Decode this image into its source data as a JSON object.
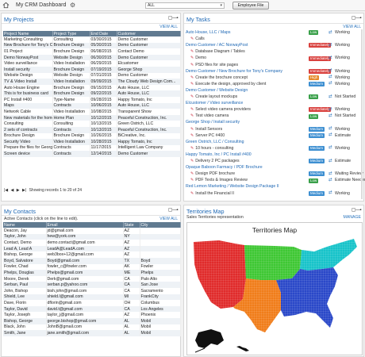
{
  "topbar": {
    "title": "My CRM Dashboard",
    "filter_value": "ALL",
    "employee_button": "Employee File"
  },
  "projects": {
    "title": "My Projects",
    "view_all": "VIEW ALL",
    "columns": [
      "Project Name",
      "Project Type",
      "End Date",
      "Customer"
    ],
    "rows": [
      [
        "Marketing Consulting",
        "Consulting",
        "03/30/2015",
        "Demo Customer"
      ],
      [
        "New Brochure for Tony's Co...",
        "Brochure Design",
        "05/30/2015",
        "Demo Customer"
      ],
      [
        "01 Project",
        "Brochure Design",
        "06/08/2015",
        "Contact Demo"
      ],
      [
        "Demo NorwayPost",
        "Website Design",
        "06/30/2015",
        "Demo Customer"
      ],
      [
        "Video surveillance",
        "Video Installation",
        "06/29/2015",
        "Elcustomer"
      ],
      [
        "Install security",
        "Brochure Design",
        "07/19/2015",
        "George Shop"
      ],
      [
        "Website Design",
        "Website Design",
        "07/31/2015",
        "Demo Customer"
      ],
      [
        "TV & Video Install",
        "Video Installation",
        "09/09/2015",
        "The Cloudy Web Design Com..."
      ],
      [
        "Auto House Engine",
        "Brochure Design",
        "09/15/2015",
        "Auto House, LLC"
      ],
      [
        "This is for business card",
        "Brochure Design",
        "09/22/2015",
        "Auto House, LLC"
      ],
      [
        "PC Install #400",
        "Type-Name",
        "09/28/2015",
        "Happy Tomato, Inc"
      ],
      [
        "Maps",
        "Contracts",
        "10/06/2015",
        "Auto House, LLC"
      ],
      [
        "Network Cable",
        "Video Installation",
        "10/08/2015",
        "Transparent Show"
      ],
      [
        "New materials for the home",
        "Home Plan",
        "10/12/2015",
        "Peaceful Construction, Inc."
      ],
      [
        "Consulting",
        "Consulting",
        "10/13/2015",
        "Green Ostrich, LLC"
      ],
      [
        "2 sets of contracts",
        "Contracts",
        "10/13/2015",
        "Peaceful Construction, Inc."
      ],
      [
        "Brochure Design",
        "Brochure Design",
        "10/26/2015",
        "BiCreative, Inc."
      ],
      [
        "Security Video",
        "Video Installation",
        "10/28/2015",
        "Happy Tomato, Inc"
      ],
      [
        "Prepare the files for George",
        "Contracts",
        "11/17/2015",
        "Intelligent Law Company"
      ],
      [
        "Screen device",
        "Contracts",
        "12/14/2015",
        "Demo Customer"
      ]
    ],
    "pager_text": "Showing records 1 to 20 of 24"
  },
  "tasks": {
    "title": "My Tasks",
    "view_all": "VIEW ALL",
    "rows": [
      {
        "kind": "proj",
        "text": "Auto House, LLC / Maps",
        "badge": "Low",
        "badge_color": "#3aa04a",
        "status": "Working"
      },
      {
        "kind": "item",
        "text": "Calls"
      },
      {
        "kind": "proj",
        "text": "Demo Customer / AC NorwayPost",
        "badge": "Immediately",
        "badge_color": "#d9413e",
        "status": "Working"
      },
      {
        "kind": "item",
        "text": "Database Diagram / Tables"
      },
      {
        "kind": "item",
        "text": "Demo",
        "badge": "Immediately",
        "badge_color": "#d9413e",
        "status": "Working"
      },
      {
        "kind": "item",
        "text": "PSD files for site pages"
      },
      {
        "kind": "proj",
        "text": "Demo Customer / New Brochure for Tony's Company",
        "badge": "Immediately",
        "badge_color": "#d9413e",
        "status": "Working"
      },
      {
        "kind": "item",
        "text": "Create the brochure concept",
        "badge": "High",
        "badge_color": "#e58a2b",
        "status": "Working"
      },
      {
        "kind": "item",
        "text": "Execute the design, approved by client",
        "badge": "Medium",
        "badge_color": "#3d8fd1",
        "status": "Working"
      },
      {
        "kind": "proj",
        "text": "Demo Customer / Website Design"
      },
      {
        "kind": "item",
        "text": "Create layout mockups",
        "badge": "Low",
        "badge_color": "#3aa04a",
        "status": "Not Started"
      },
      {
        "kind": "proj",
        "text": "Elcustomer / Video surveillance"
      },
      {
        "kind": "item",
        "text": "Select video camera providers",
        "badge": "Immediately",
        "badge_color": "#d9413e",
        "status": "Working"
      },
      {
        "kind": "item",
        "text": "Test video camera",
        "badge": "Low",
        "badge_color": "#3aa04a",
        "status": "Not Started"
      },
      {
        "kind": "proj",
        "text": "George Shop / Install security"
      },
      {
        "kind": "item",
        "text": "Install Sensors",
        "badge": "Medium",
        "badge_color": "#3d8fd1",
        "status": "Working"
      },
      {
        "kind": "item",
        "text": "Server PC #400",
        "badge": "Medium",
        "badge_color": "#3d8fd1",
        "status": "Estimate"
      },
      {
        "kind": "proj",
        "text": "Green Ostrich, LLC / Consulting"
      },
      {
        "kind": "item",
        "text": "10 hours - consulting",
        "badge": "Medium",
        "badge_color": "#3d8fd1",
        "status": "Working"
      },
      {
        "kind": "proj",
        "text": "Happy Tomato, Inc / PC Install #400"
      },
      {
        "kind": "item",
        "text": "Delivery 2 PC packages",
        "badge": "Medium",
        "badge_color": "#3d8fd1",
        "status": "Estimate"
      },
      {
        "kind": "proj",
        "text": "Opaque Baboon Farmacy / PDF Brochure"
      },
      {
        "kind": "item",
        "text": "Design PDF brochure",
        "badge": "Medium",
        "badge_color": "#3d8fd1",
        "status": "Waiting Review"
      },
      {
        "kind": "item",
        "text": "PDF Texts & Images Review",
        "badge": "Low",
        "badge_color": "#3aa04a",
        "status": "Estimate Needed"
      },
      {
        "kind": "proj",
        "text": "Red Lemon Marketing / Website Design Package II"
      },
      {
        "kind": "item",
        "text": "Install the Financial II",
        "badge": "Medium",
        "badge_color": "#3d8fd1",
        "status": "Working"
      }
    ]
  },
  "contacts": {
    "title": "My Contacts",
    "view_all": "VIEW ALL",
    "subtitle": "Active Contacts (click on the line to edit).",
    "columns": [
      "Name",
      "Email",
      "State",
      "City"
    ],
    "rows": [
      [
        "Deacon, Jay",
        "jd@gmail.com",
        "AZ",
        ""
      ],
      [
        "Taylor, John",
        "hew@york.com",
        "NY",
        ""
      ],
      [
        "Contact, Demo",
        "demo.contact@gmail.com",
        "AZ",
        ""
      ],
      [
        "Lead A, Lead A",
        "LeadA@LeadA.com",
        "AZ",
        ""
      ],
      [
        "Bishop, George",
        "web3box+12@gmail.com",
        "AZ",
        ""
      ],
      [
        "Boyd, Salvatore",
        "Boyd@gmail.com",
        "TX",
        "Boyd"
      ],
      [
        "Fowler, Chad",
        "fowler_c@fowler.com",
        "AK",
        "Fowler"
      ],
      [
        "Phelps, Douglas",
        "Phelps@gmail.com",
        "ME",
        "Phelps"
      ],
      [
        "Moore, Derek",
        "Derk@gmail.com",
        "CA",
        "Palo Alto"
      ],
      [
        "Serban, Paul",
        "serban.p@yahoo.com",
        "CA",
        "San Jose"
      ],
      [
        "John, Bishop",
        "bish.john@gmail.com",
        "CA",
        "Sacramento"
      ],
      [
        "Shield, Lee",
        "shield.l@gmail.com",
        "MI",
        "FrankCity"
      ],
      [
        "Dave, Florin",
        "dflorin@gmail.com",
        "OH",
        "Columbus"
      ],
      [
        "Taylor, David",
        "david.t@gmail.com",
        "CA",
        "Los Angeles"
      ],
      [
        "Taylor, Joseph",
        "taylor_j@gmail.com",
        "AZ",
        "Phoenix"
      ],
      [
        "Bishop, George",
        "george.bishop@gmail.com",
        "AL",
        "Mobil"
      ],
      [
        "Black, John",
        "JohnB@gmail.com",
        "AL",
        "Mobil"
      ],
      [
        "Smith, Jane",
        "jane.smith@gmail.com",
        "AL",
        "Mobil"
      ]
    ]
  },
  "territories": {
    "title": "Territories Map",
    "subtitle": "Sales Territories representation",
    "manage": "MANAGE",
    "map_title": "Territories Map",
    "colors": {
      "west": "#e02b2b",
      "north": "#3ec733",
      "east": "#17c3c9",
      "south": "#f07d1a",
      "southeast": "#2a48c8",
      "border": "#d7d7d7"
    }
  }
}
